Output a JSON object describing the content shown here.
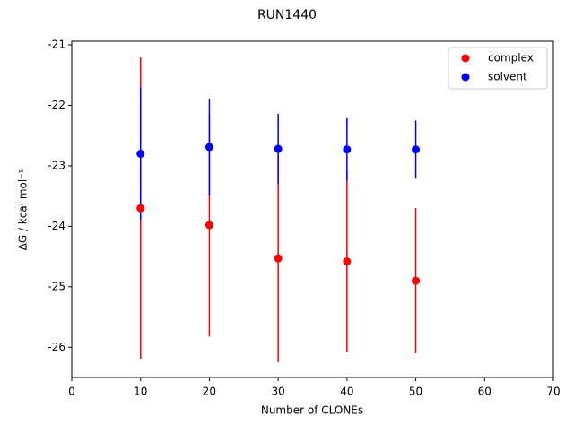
{
  "chart_data": {
    "type": "scatter",
    "title": "RUN1440",
    "x_label": "Number of CLONEs",
    "y_label": "ΔG / kcal mol⁻¹",
    "x": [
      10,
      20,
      30,
      40,
      50
    ],
    "series": [
      {
        "name": "complex",
        "color": "#ff0000",
        "values": [
          -23.7,
          -23.98,
          -24.53,
          -24.58,
          -24.9
        ],
        "errors": [
          2.49,
          1.84,
          1.72,
          1.5,
          1.2
        ]
      },
      {
        "name": "solvent",
        "color": "#0000ff",
        "values": [
          -22.8,
          -22.69,
          -22.72,
          -22.73,
          -22.73
        ],
        "errors": [
          1.1,
          0.8,
          0.58,
          0.52,
          0.48
        ]
      }
    ],
    "xlim": [
      0,
      70
    ],
    "xticks": [
      0,
      10,
      20,
      30,
      40,
      50,
      60,
      70
    ],
    "ylim": [
      -26.5,
      -20.94
    ],
    "yticks": [
      -26,
      -25,
      -24,
      -23,
      -22,
      -21
    ],
    "legend": "upper right"
  }
}
